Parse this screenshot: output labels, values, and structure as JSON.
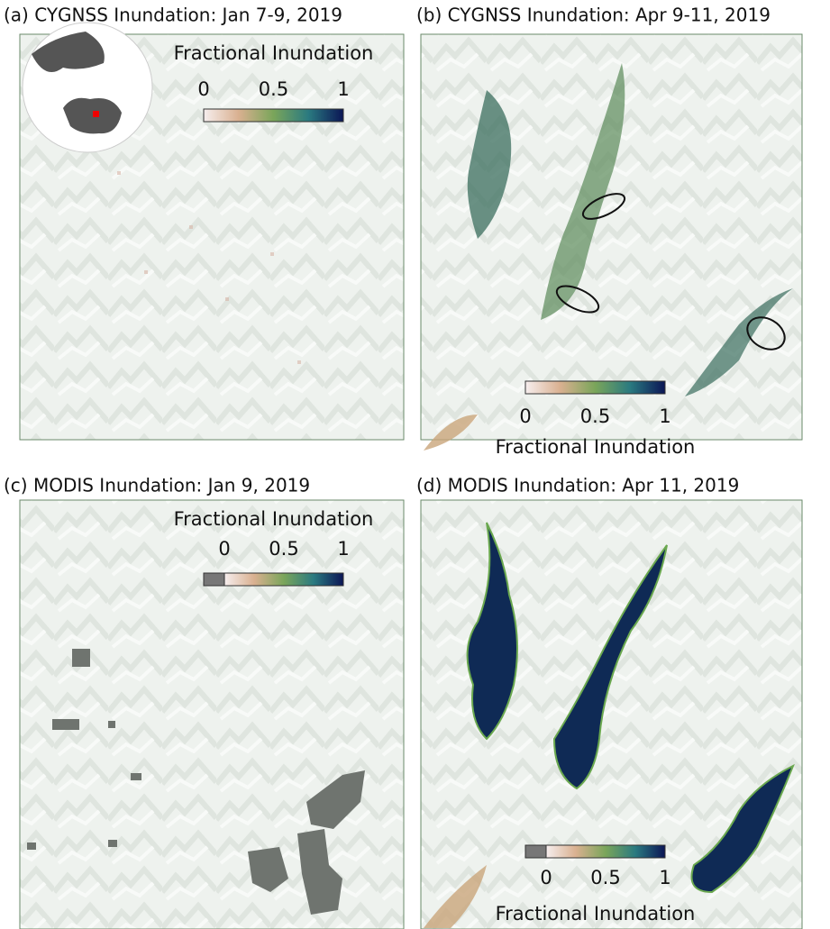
{
  "panels": [
    {
      "title": "(a) CYGNSS Inundation: Jan 7-9, 2019",
      "colorbar": {
        "label": "Fractional Inundation",
        "ticks": [
          0,
          0.5,
          1
        ]
      }
    },
    {
      "title": "(b) CYGNSS Inundation: Apr 9-11, 2019",
      "colorbar": {
        "label": "Fractional Inundation",
        "ticks": [
          0,
          0.5,
          1
        ]
      }
    },
    {
      "title": "(c) MODIS Inundation: Jan 9, 2019",
      "colorbar": {
        "label": "Fractional Inundation",
        "ticks": [
          0,
          0.5,
          1
        ]
      }
    },
    {
      "title": "(d) MODIS Inundation: Apr 11, 2019",
      "colorbar": {
        "label": "Fractional Inundation",
        "ticks": [
          0,
          0.5,
          1
        ]
      }
    }
  ]
}
